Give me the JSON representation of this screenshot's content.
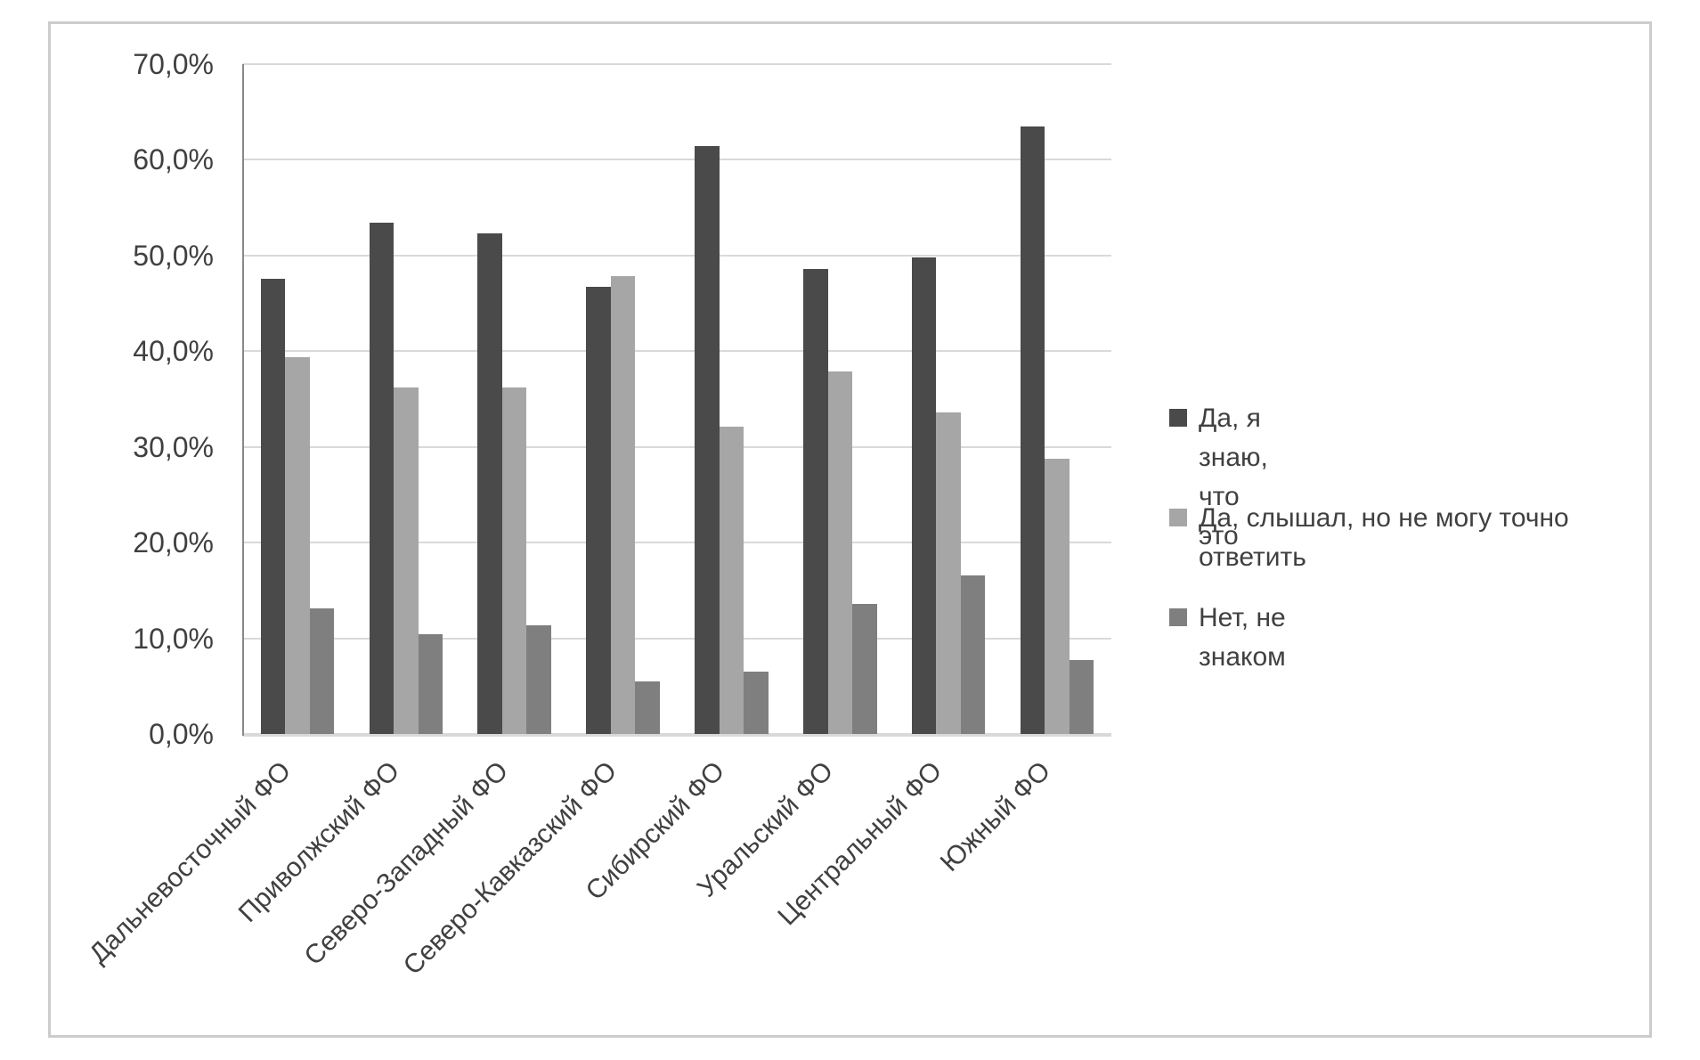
{
  "chart_data": {
    "type": "bar",
    "title": "",
    "xlabel": "",
    "ylabel": "",
    "categories": [
      "Дальневосточный ФО",
      "Приволжский ФО",
      "Северо-Западный ФО",
      "Северо-Кавказский ФО",
      "Сибирский ФО",
      "Уральский ФО",
      "Центральный ФО",
      "Южный ФО"
    ],
    "series": [
      {
        "name": "Да, я знаю, что это",
        "color": "#4a4a4a",
        "values": [
          47.6,
          53.4,
          52.3,
          46.7,
          61.4,
          48.6,
          49.8,
          63.5
        ]
      },
      {
        "name": "Да, слышал, но не могу точно ответить",
        "color": "#a6a6a6",
        "values": [
          39.4,
          36.2,
          36.2,
          47.8,
          32.1,
          37.9,
          33.6,
          28.8
        ]
      },
      {
        "name": "Нет, не знаком",
        "color": "#7f7f7f",
        "values": [
          13.1,
          10.4,
          11.4,
          5.5,
          6.5,
          13.6,
          16.6,
          7.7
        ]
      }
    ],
    "ylim": [
      0,
      70
    ],
    "ytick_labels": [
      "0,0%",
      "10,0%",
      "20,0%",
      "30,0%",
      "40,0%",
      "50,0%",
      "60,0%",
      "70,0%"
    ],
    "grid": true,
    "legend_position": "right"
  },
  "colors": {
    "gridline": "#d9d9d9",
    "axis_line": "#898989",
    "border": "#cccccc",
    "text": "#404040",
    "background": "#ffffff"
  }
}
